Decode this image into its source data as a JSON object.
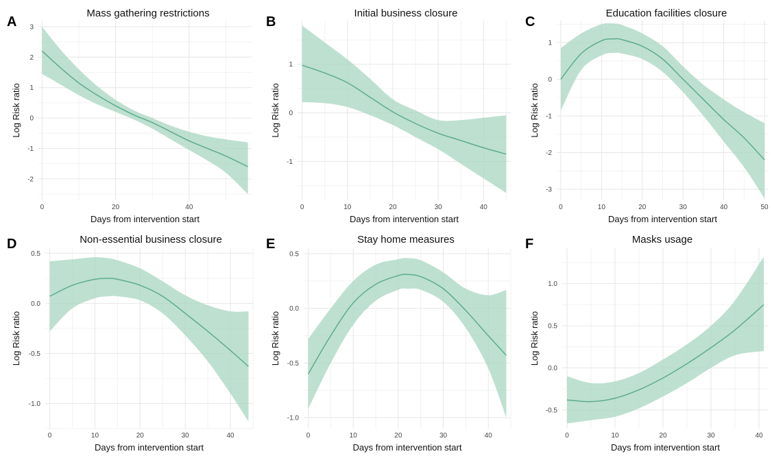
{
  "colors": {
    "line": "#5aad8c",
    "ribbon": "#a8d5c0",
    "grid": "#e6e6e6"
  },
  "chart_data": [
    {
      "panel": "A",
      "type": "line",
      "title": "Mass gathering restrictions",
      "xlabel": "Days from intervention start",
      "ylabel": "Log Risk ratio",
      "xlim": [
        -1,
        57
      ],
      "ylim": [
        -2.7,
        3.2
      ],
      "xticks": [
        0,
        20,
        40
      ],
      "yticks": [
        -2,
        -1,
        0,
        1,
        2,
        3
      ],
      "grid": true,
      "series": [
        {
          "x": [
            0,
            5,
            10,
            15,
            20,
            25,
            30,
            35,
            40,
            45,
            50,
            56
          ],
          "y": [
            2.2,
            1.65,
            1.15,
            0.75,
            0.4,
            0.1,
            -0.15,
            -0.45,
            -0.75,
            -1.0,
            -1.25,
            -1.6
          ],
          "lower": [
            1.45,
            1.1,
            0.75,
            0.45,
            0.2,
            -0.05,
            -0.35,
            -0.7,
            -1.05,
            -1.4,
            -1.8,
            -2.5
          ],
          "upper": [
            3.0,
            2.25,
            1.6,
            1.05,
            0.6,
            0.25,
            0.0,
            -0.25,
            -0.45,
            -0.6,
            -0.7,
            -0.8
          ]
        }
      ]
    },
    {
      "panel": "B",
      "type": "line",
      "title": "Initial business closure",
      "xlabel": "Days from intervention start",
      "ylabel": "Log Risk ratio",
      "xlim": [
        -1,
        46
      ],
      "ylim": [
        -1.8,
        1.9
      ],
      "xticks": [
        0,
        10,
        20,
        30,
        40
      ],
      "yticks": [
        -1,
        0,
        1
      ],
      "grid": true,
      "series": [
        {
          "x": [
            0,
            5,
            10,
            15,
            20,
            25,
            30,
            35,
            40,
            45
          ],
          "y": [
            0.98,
            0.82,
            0.62,
            0.32,
            0.02,
            -0.22,
            -0.42,
            -0.57,
            -0.72,
            -0.85
          ],
          "lower": [
            0.22,
            0.2,
            0.12,
            -0.05,
            -0.25,
            -0.5,
            -0.75,
            -1.05,
            -1.35,
            -1.65
          ],
          "upper": [
            1.8,
            1.45,
            1.1,
            0.7,
            0.28,
            0.05,
            -0.15,
            -0.15,
            -0.1,
            -0.05
          ]
        }
      ]
    },
    {
      "panel": "C",
      "type": "line",
      "title": "Education facilities closure",
      "xlabel": "Days from intervention start",
      "ylabel": "Log Risk ratio",
      "xlim": [
        -1,
        51
      ],
      "ylim": [
        -3.3,
        1.6
      ],
      "xticks": [
        0,
        10,
        20,
        30,
        40,
        50
      ],
      "yticks": [
        -3,
        -2,
        -1,
        0,
        1
      ],
      "grid": true,
      "series": [
        {
          "x": [
            0,
            5,
            10,
            13,
            15,
            20,
            25,
            30,
            35,
            40,
            45,
            50
          ],
          "y": [
            0.0,
            0.7,
            1.05,
            1.1,
            1.08,
            0.9,
            0.55,
            0.0,
            -0.55,
            -1.1,
            -1.6,
            -2.2
          ],
          "lower": [
            -0.85,
            0.25,
            0.65,
            0.72,
            0.7,
            0.55,
            0.2,
            -0.35,
            -1.0,
            -1.7,
            -2.4,
            -3.25
          ],
          "upper": [
            0.85,
            1.25,
            1.5,
            1.52,
            1.48,
            1.25,
            0.9,
            0.35,
            -0.15,
            -0.55,
            -0.9,
            -1.2
          ]
        }
      ]
    },
    {
      "panel": "D",
      "type": "line",
      "title": "Non-essential business closure",
      "xlabel": "Days from intervention start",
      "ylabel": "Log Risk ratio",
      "xlim": [
        -1,
        45
      ],
      "ylim": [
        -1.25,
        0.55
      ],
      "xticks": [
        0,
        10,
        20,
        30,
        40
      ],
      "yticks": [
        -1.0,
        -0.5,
        0.0,
        0.5
      ],
      "ytick_labels": [
        "-1.0",
        "-0.5",
        "0.0",
        "0.5"
      ],
      "grid": true,
      "series": [
        {
          "x": [
            0,
            5,
            10,
            13,
            15,
            20,
            25,
            30,
            35,
            40,
            44
          ],
          "y": [
            0.07,
            0.18,
            0.24,
            0.25,
            0.24,
            0.18,
            0.07,
            -0.1,
            -0.28,
            -0.47,
            -0.63
          ],
          "lower": [
            -0.28,
            -0.05,
            0.05,
            0.07,
            0.07,
            0.03,
            -0.1,
            -0.32,
            -0.58,
            -0.9,
            -1.18
          ],
          "upper": [
            0.42,
            0.44,
            0.46,
            0.45,
            0.43,
            0.35,
            0.22,
            0.08,
            -0.02,
            -0.08,
            -0.08
          ]
        }
      ]
    },
    {
      "panel": "E",
      "type": "line",
      "title": "Stay home measures",
      "xlabel": "Days from intervention start",
      "ylabel": "Log Risk ratio",
      "xlim": [
        -1,
        45
      ],
      "ylim": [
        -1.1,
        0.55
      ],
      "xticks": [
        0,
        10,
        20,
        30,
        40
      ],
      "yticks": [
        -1.0,
        -0.5,
        0.0,
        0.5
      ],
      "ytick_labels": [
        "-1.0",
        "-0.5",
        "0.0",
        "0.5"
      ],
      "grid": true,
      "series": [
        {
          "x": [
            0,
            5,
            10,
            15,
            20,
            22,
            25,
            30,
            35,
            40,
            44
          ],
          "y": [
            -0.6,
            -0.25,
            0.05,
            0.22,
            0.3,
            0.31,
            0.29,
            0.18,
            -0.02,
            -0.25,
            -0.43
          ],
          "lower": [
            -0.92,
            -0.5,
            -0.15,
            0.07,
            0.17,
            0.18,
            0.17,
            0.06,
            -0.18,
            -0.55,
            -1.0
          ],
          "upper": [
            -0.28,
            0.0,
            0.25,
            0.4,
            0.45,
            0.46,
            0.44,
            0.33,
            0.18,
            0.12,
            0.17
          ]
        }
      ]
    },
    {
      "panel": "F",
      "type": "line",
      "title": "Masks usage",
      "xlabel": "Days from intervention start",
      "ylabel": "Log Risk ratio",
      "xlim": [
        -1,
        42
      ],
      "ylim": [
        -0.72,
        1.42
      ],
      "xticks": [
        0,
        10,
        20,
        30,
        40
      ],
      "yticks": [
        -0.5,
        0.0,
        0.5,
        1.0
      ],
      "ytick_labels": [
        "-0.5",
        "0.0",
        "0.5",
        "1.0"
      ],
      "grid": true,
      "series": [
        {
          "x": [
            0,
            5,
            10,
            15,
            20,
            25,
            30,
            35,
            41
          ],
          "y": [
            -0.38,
            -0.4,
            -0.36,
            -0.26,
            -0.12,
            0.05,
            0.24,
            0.45,
            0.75
          ],
          "lower": [
            -0.66,
            -0.62,
            -0.58,
            -0.48,
            -0.34,
            -0.18,
            0.0,
            0.15,
            0.2
          ],
          "upper": [
            -0.1,
            -0.18,
            -0.16,
            -0.06,
            0.1,
            0.28,
            0.5,
            0.8,
            1.32
          ]
        }
      ]
    }
  ]
}
